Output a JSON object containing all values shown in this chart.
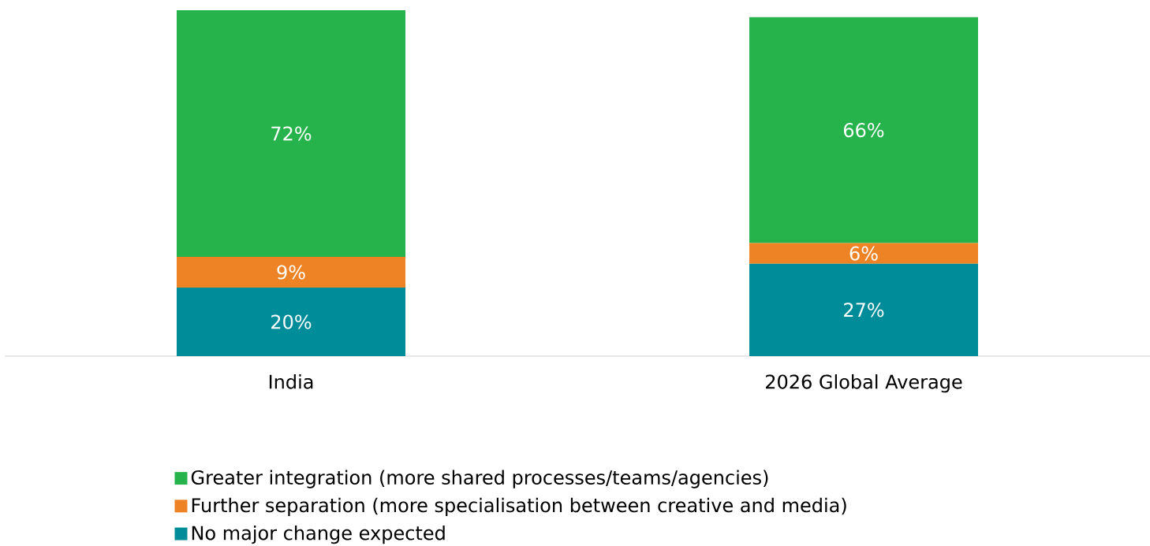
{
  "chart_data": {
    "type": "bar",
    "stacked": true,
    "categories": [
      "India",
      "2026 Global Average"
    ],
    "series": [
      {
        "name": "No major change expected",
        "color": "#008c99",
        "values": [
          20,
          27
        ],
        "value_labels": [
          "20%",
          "27%"
        ]
      },
      {
        "name": "Further separation (more specialisation between creative and media)",
        "color": "#ee8326",
        "values": [
          9,
          6
        ],
        "value_labels": [
          "9%",
          "6%"
        ]
      },
      {
        "name": "Greater integration (more shared processes/teams/agencies)",
        "color": "#27b34b",
        "values": [
          72,
          66
        ],
        "value_labels": [
          "72%",
          "66%"
        ]
      }
    ],
    "legend": "bottom"
  }
}
